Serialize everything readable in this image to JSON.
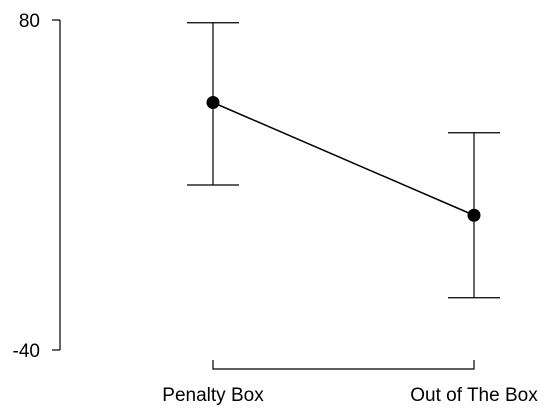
{
  "chart_data": {
    "type": "line",
    "title": "",
    "xlabel": "",
    "ylabel": "",
    "categories": [
      "Penalty Box",
      "Out of The Box"
    ],
    "ylim": [
      -40,
      80
    ],
    "yticks": [
      "80",
      "-40"
    ],
    "series": [
      {
        "values": [
          50,
          9
        ],
        "lower": [
          20,
          -21
        ],
        "upper": [
          79,
          39
        ]
      }
    ],
    "grid": false,
    "legend": "none"
  }
}
